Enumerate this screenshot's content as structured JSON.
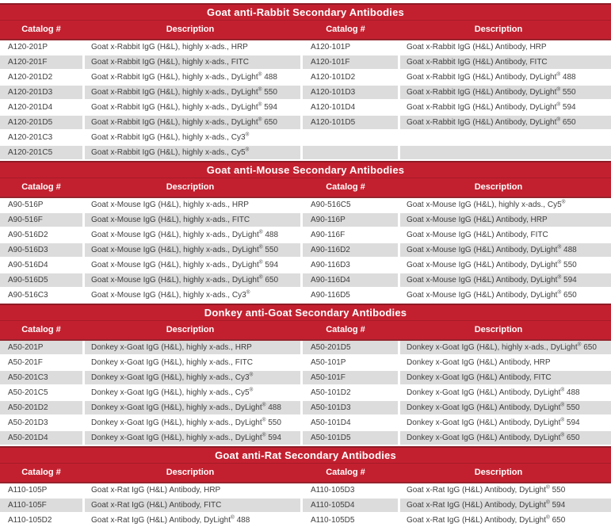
{
  "colors": {
    "banner_red": "#C3202F",
    "divider_dark_red": "#8E1B26",
    "row_gray": "#DCDCDC",
    "body_text": "#3E3E3E",
    "header_text": "#FFFFFF"
  },
  "sections": [
    {
      "title": "Goat anti-Rabbit Secondary Antibodies",
      "first_row_shade": "white",
      "headers": [
        "Catalog #",
        "Description",
        "Catalog #",
        "Description"
      ],
      "rows": [
        [
          "A120-201P",
          "Goat x-Rabbit IgG (H&L), highly x-ads., HRP",
          "A120-101P",
          "Goat x-Rabbit IgG (H&L) Antibody, HRP"
        ],
        [
          "A120-201F",
          "Goat x-Rabbit IgG (H&L), highly x-ads., FITC",
          "A120-101F",
          "Goat x-Rabbit IgG (H&L) Antibody, FITC"
        ],
        [
          "A120-201D2",
          "Goat x-Rabbit IgG (H&L), highly x-ads., DyLight® 488",
          "A120-101D2",
          "Goat x-Rabbit IgG (H&L) Antibody, DyLight® 488"
        ],
        [
          "A120-201D3",
          "Goat x-Rabbit IgG (H&L), highly x-ads., DyLight® 550",
          "A120-101D3",
          "Goat x-Rabbit IgG (H&L) Antibody, DyLight® 550"
        ],
        [
          "A120-201D4",
          "Goat x-Rabbit IgG (H&L), highly x-ads., DyLight® 594",
          "A120-101D4",
          "Goat x-Rabbit IgG (H&L) Antibody, DyLight® 594"
        ],
        [
          "A120-201D5",
          "Goat x-Rabbit IgG (H&L), highly x-ads., DyLight® 650",
          "A120-101D5",
          "Goat x-Rabbit IgG (H&L) Antibody, DyLight® 650"
        ],
        [
          "A120-201C3",
          "Goat x-Rabbit IgG (H&L), highly x-ads., Cy3®",
          "",
          ""
        ],
        [
          "A120-201C5",
          "Goat x-Rabbit IgG (H&L), highly x-ads., Cy5®",
          "",
          ""
        ]
      ]
    },
    {
      "title": "Goat anti-Mouse Secondary Antibodies",
      "first_row_shade": "white",
      "headers": [
        "Catalog #",
        "Description",
        "Catalog #",
        "Description"
      ],
      "rows": [
        [
          "A90-516P",
          "Goat x-Mouse IgG (H&L), highly x-ads., HRP",
          "A90-516C5",
          "Goat x-Mouse IgG (H&L), highly x-ads., Cy5®"
        ],
        [
          "A90-516F",
          "Goat x-Mouse IgG (H&L), highly x-ads., FITC",
          "A90-116P",
          "Goat x-Mouse IgG (H&L) Antibody, HRP"
        ],
        [
          "A90-516D2",
          "Goat x-Mouse IgG (H&L), highly x-ads., DyLight® 488",
          "A90-116F",
          "Goat x-Mouse IgG (H&L) Antibody, FITC"
        ],
        [
          "A90-516D3",
          "Goat x-Mouse IgG (H&L), highly x-ads., DyLight® 550",
          "A90-116D2",
          "Goat x-Mouse IgG (H&L) Antibody, DyLight® 488"
        ],
        [
          "A90-516D4",
          "Goat x-Mouse IgG (H&L), highly x-ads., DyLight® 594",
          "A90-116D3",
          "Goat x-Mouse IgG (H&L) Antibody, DyLight® 550"
        ],
        [
          "A90-516D5",
          "Goat x-Mouse IgG (H&L), highly x-ads., DyLight® 650",
          "A90-116D4",
          "Goat x-Mouse IgG (H&L) Antibody, DyLight® 594"
        ],
        [
          "A90-516C3",
          "Goat x-Mouse IgG (H&L), highly x-ads., Cy3®",
          "A90-116D5",
          "Goat x-Mouse IgG (H&L) Antibody, DyLight® 650"
        ]
      ]
    },
    {
      "title": "Donkey anti-Goat Secondary Antibodies",
      "first_row_shade": "gray",
      "headers": [
        "Catalog #",
        "Description",
        "Catalog #",
        "Description"
      ],
      "rows": [
        [
          "A50-201P",
          "Donkey x-Goat IgG (H&L), highly x-ads., HRP",
          "A50-201D5",
          "Donkey x-Goat IgG (H&L), highly x-ads., DyLight® 650"
        ],
        [
          "A50-201F",
          "Donkey x-Goat IgG (H&L), highly x-ads., FITC",
          "A50-101P",
          "Donkey x-Goat IgG (H&L) Antibody, HRP"
        ],
        [
          "A50-201C3",
          "Donkey x-Goat IgG (H&L), highly x-ads., Cy3®",
          "A50-101F",
          "Donkey x-Goat IgG (H&L) Antibody, FITC"
        ],
        [
          "A50-201C5",
          "Donkey x-Goat IgG (H&L), highly x-ads., Cy5®",
          "A50-101D2",
          "Donkey x-Goat IgG (H&L) Antibody, DyLight® 488"
        ],
        [
          "A50-201D2",
          "Donkey x-Goat IgG (H&L), highly x-ads., DyLight® 488",
          "A50-101D3",
          "Donkey x-Goat IgG (H&L) Antibody, DyLight® 550"
        ],
        [
          "A50-201D3",
          "Donkey x-Goat IgG (H&L), highly x-ads., DyLight® 550",
          "A50-101D4",
          "Donkey x-Goat IgG (H&L) Antibody, DyLight® 594"
        ],
        [
          "A50-201D4",
          "Donkey x-Goat IgG (H&L), highly x-ads., DyLight® 594",
          "A50-101D5",
          "Donkey x-Goat IgG (H&L) Antibody, DyLight® 650"
        ]
      ]
    },
    {
      "title": "Goat anti-Rat Secondary Antibodies",
      "first_row_shade": "white",
      "headers": [
        "Catalog #",
        "Description",
        "Catalog #",
        "Description"
      ],
      "rows": [
        [
          "A110-105P",
          "Goat x-Rat IgG (H&L) Antibody, HRP",
          "A110-105D3",
          "Goat x-Rat IgG (H&L) Antibody, DyLight® 550"
        ],
        [
          "A110-105F",
          "Goat x-Rat IgG (H&L) Antibody, FITC",
          "A110-105D4",
          "Goat x-Rat IgG (H&L) Antibody, DyLight® 594"
        ],
        [
          "A110-105D2",
          "Goat x-Rat IgG (H&L) Antibody, DyLight® 488",
          "A110-105D5",
          "Goat x-Rat IgG (H&L) Antibody, DyLight® 650"
        ]
      ]
    }
  ]
}
